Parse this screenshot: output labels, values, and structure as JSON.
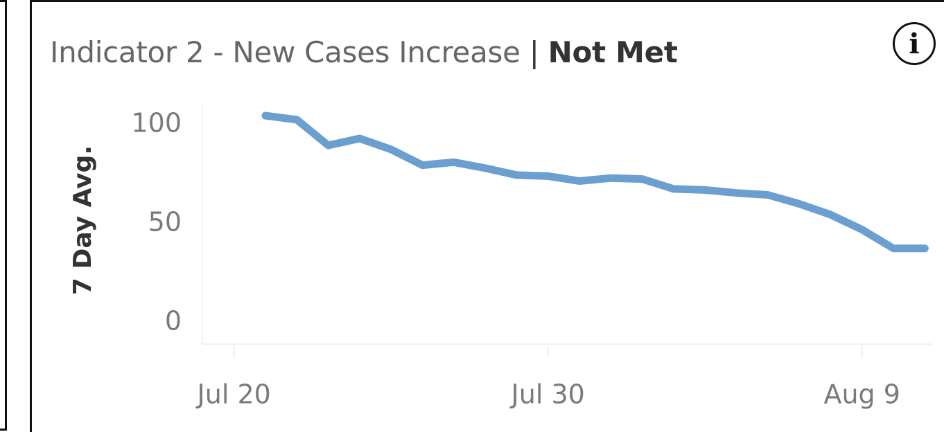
{
  "header": {
    "title_main": "Indicator 2 - New Cases Increase",
    "separator": "|",
    "status": "Not Met"
  },
  "info_icon": {
    "icon": "info-icon",
    "glyph": "i"
  },
  "chart_data": {
    "type": "line",
    "title": "Indicator 2 - New Cases Increase | Not Met",
    "xlabel": "",
    "ylabel": "7 Day Avg.",
    "ylim": [
      0,
      115
    ],
    "yticks": [
      0,
      50,
      100
    ],
    "ytick_labels": [
      "0",
      "50",
      "100"
    ],
    "xticks": [
      "Jul 20",
      "Jul 30",
      "Aug 9"
    ],
    "xtick_labels": [
      "Jul 20",
      "Jul 30",
      "Aug 9"
    ],
    "xlim": [
      "Jul 18",
      "Aug 12"
    ],
    "grid": false,
    "legend": "none",
    "series": [
      {
        "color": "#6a9fcf",
        "x": [
          "Jul 21",
          "Jul 22",
          "Jul 23",
          "Jul 24",
          "Jul 25",
          "Jul 26",
          "Jul 27",
          "Jul 28",
          "Jul 29",
          "Jul 30",
          "Jul 31",
          "Aug 1",
          "Aug 2",
          "Aug 3",
          "Aug 4",
          "Aug 5",
          "Aug 6",
          "Aug 7",
          "Aug 8",
          "Aug 9",
          "Aug 10",
          "Aug 11"
        ],
        "values": [
          104.5,
          102.5,
          89.5,
          93.0,
          87.5,
          79.5,
          81.0,
          78.0,
          74.5,
          74.0,
          71.5,
          73.0,
          72.5,
          67.5,
          67.0,
          65.5,
          64.5,
          60.0,
          54.5,
          47.0,
          37.5,
          37.5
        ]
      }
    ]
  }
}
